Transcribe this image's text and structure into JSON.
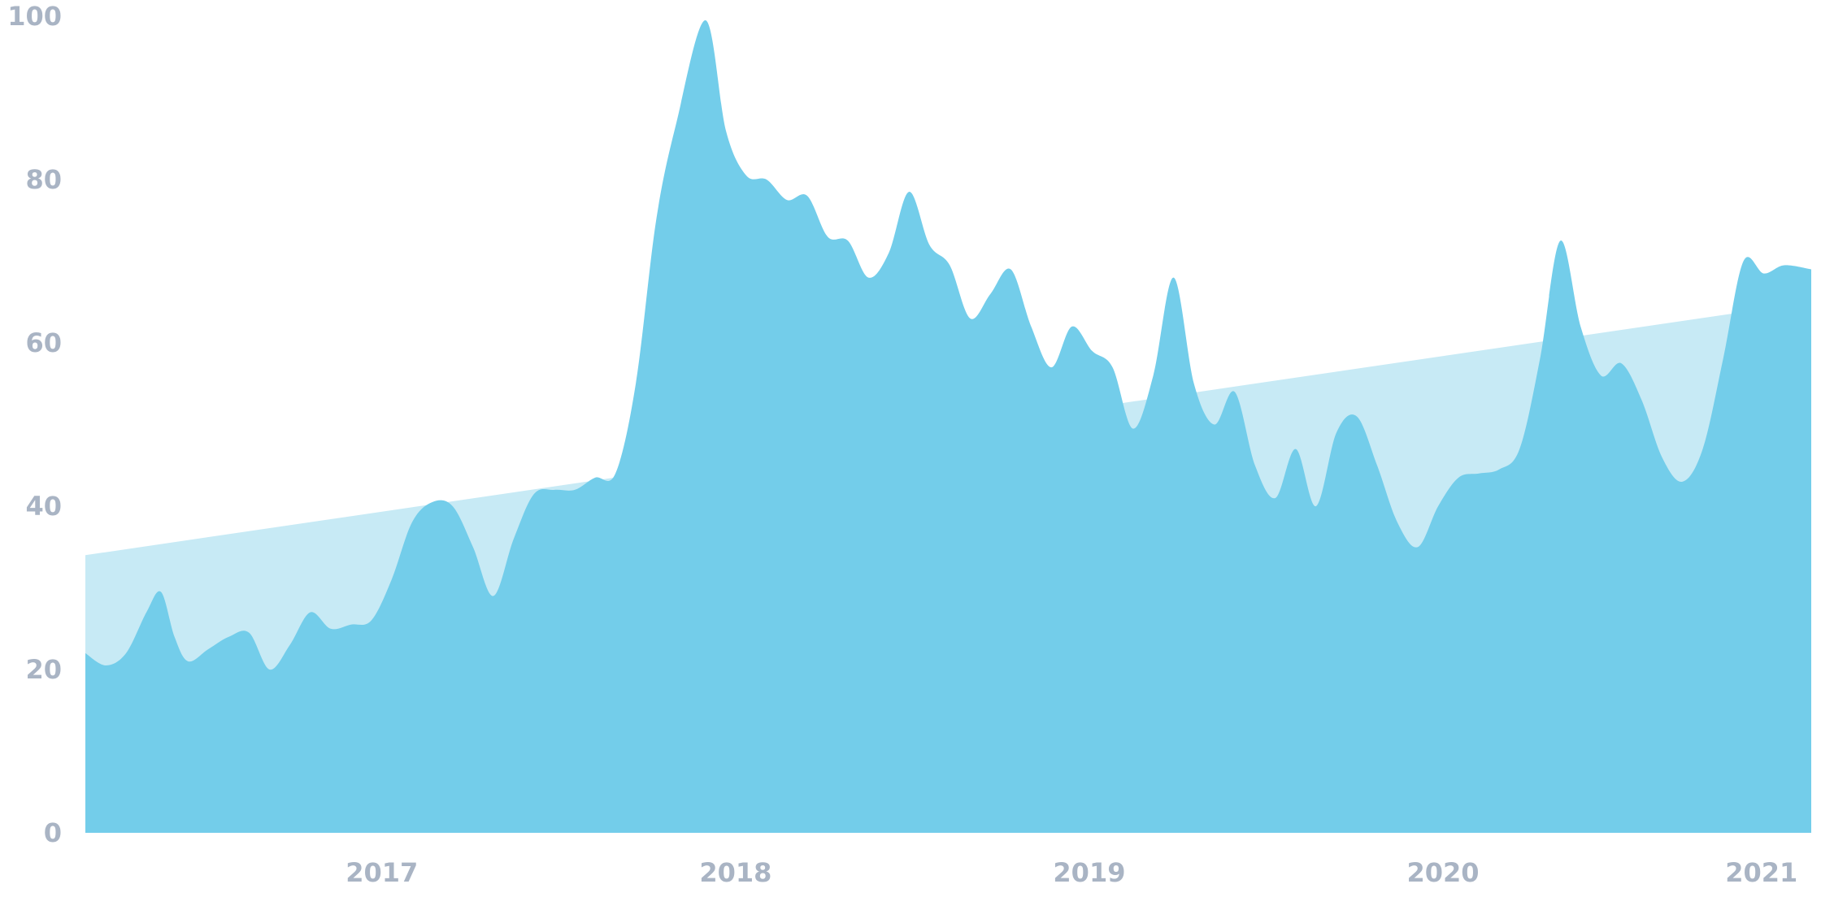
{
  "chart_data": {
    "type": "area",
    "title": "",
    "xlabel": "",
    "ylabel": "",
    "ylim": [
      0,
      100
    ],
    "y_ticks": [
      "0",
      "20",
      "40",
      "60",
      "80",
      "100"
    ],
    "x_ticks": [
      "2017",
      "2018",
      "2019",
      "2020",
      "2021"
    ],
    "x_tick_dates": [
      "2017-01-01",
      "2018-01-01",
      "2019-01-01",
      "2020-01-01",
      "2021-01-01"
    ],
    "xlim": [
      "2016-03-01",
      "2021-01-15"
    ],
    "grid": false,
    "legend": "none",
    "colors": {
      "series": "#73cdea",
      "trend": "#c7eaf5",
      "ticks": "#a9b4c4"
    },
    "series": [
      {
        "values": [
          [
            "2016-03-01",
            22
          ],
          [
            "2016-03-22",
            20.5
          ],
          [
            "2016-04-12",
            22
          ],
          [
            "2016-05-03",
            27
          ],
          [
            "2016-05-18",
            29.5
          ],
          [
            "2016-06-01",
            24
          ],
          [
            "2016-06-15",
            21
          ],
          [
            "2016-07-06",
            22.5
          ],
          [
            "2016-07-27",
            24
          ],
          [
            "2016-08-17",
            24.5
          ],
          [
            "2016-09-07",
            20
          ],
          [
            "2016-09-28",
            23
          ],
          [
            "2016-10-19",
            27
          ],
          [
            "2016-11-09",
            25
          ],
          [
            "2016-11-30",
            25.5
          ],
          [
            "2016-12-21",
            26
          ],
          [
            "2017-01-11",
            31
          ],
          [
            "2017-02-01",
            38
          ],
          [
            "2017-02-22",
            40.5
          ],
          [
            "2017-03-15",
            40
          ],
          [
            "2017-04-05",
            35
          ],
          [
            "2017-04-26",
            29
          ],
          [
            "2017-05-17",
            36
          ],
          [
            "2017-06-07",
            41.5
          ],
          [
            "2017-06-28",
            42
          ],
          [
            "2017-07-19",
            42
          ],
          [
            "2017-08-09",
            43.5
          ],
          [
            "2017-08-30",
            44
          ],
          [
            "2017-09-20",
            55
          ],
          [
            "2017-10-11",
            75
          ],
          [
            "2017-11-01",
            87
          ],
          [
            "2017-12-01",
            99.5
          ],
          [
            "2017-12-22",
            86
          ],
          [
            "2018-01-12",
            80.5
          ],
          [
            "2018-02-02",
            80
          ],
          [
            "2018-02-23",
            77.5
          ],
          [
            "2018-03-16",
            78
          ],
          [
            "2018-04-06",
            73
          ],
          [
            "2018-04-27",
            72.5
          ],
          [
            "2018-05-18",
            68
          ],
          [
            "2018-06-08",
            71
          ],
          [
            "2018-06-29",
            78.5
          ],
          [
            "2018-07-20",
            72
          ],
          [
            "2018-08-10",
            69.5
          ],
          [
            "2018-08-31",
            63
          ],
          [
            "2018-09-21",
            66
          ],
          [
            "2018-10-12",
            69
          ],
          [
            "2018-11-02",
            62
          ],
          [
            "2018-11-23",
            57
          ],
          [
            "2018-12-14",
            62
          ],
          [
            "2019-01-04",
            59
          ],
          [
            "2019-01-25",
            57
          ],
          [
            "2019-02-15",
            49.5
          ],
          [
            "2019-03-08",
            56
          ],
          [
            "2019-03-29",
            68
          ],
          [
            "2019-04-19",
            55
          ],
          [
            "2019-05-10",
            50
          ],
          [
            "2019-05-31",
            54
          ],
          [
            "2019-06-21",
            45
          ],
          [
            "2019-07-12",
            41
          ],
          [
            "2019-08-02",
            47
          ],
          [
            "2019-08-23",
            40
          ],
          [
            "2019-09-13",
            49
          ],
          [
            "2019-10-04",
            51
          ],
          [
            "2019-10-25",
            45
          ],
          [
            "2019-11-15",
            38
          ],
          [
            "2019-12-06",
            35
          ],
          [
            "2019-12-27",
            40
          ],
          [
            "2020-01-17",
            43.5
          ],
          [
            "2020-02-07",
            44
          ],
          [
            "2020-02-28",
            44.5
          ],
          [
            "2020-03-20",
            47
          ],
          [
            "2020-04-10",
            58
          ],
          [
            "2020-05-01",
            72.5
          ],
          [
            "2020-05-22",
            62
          ],
          [
            "2020-06-12",
            56
          ],
          [
            "2020-07-03",
            57.5
          ],
          [
            "2020-07-24",
            53
          ],
          [
            "2020-08-14",
            46
          ],
          [
            "2020-09-04",
            43
          ],
          [
            "2020-09-25",
            47
          ],
          [
            "2020-10-16",
            58
          ],
          [
            "2020-11-06",
            70
          ],
          [
            "2020-11-27",
            68.5
          ],
          [
            "2020-12-18",
            69.5
          ],
          [
            "2021-01-15",
            69
          ]
        ]
      }
    ],
    "trendline": {
      "start": [
        "2016-03-01",
        34
      ],
      "end": [
        "2021-01-15",
        65
      ]
    }
  }
}
